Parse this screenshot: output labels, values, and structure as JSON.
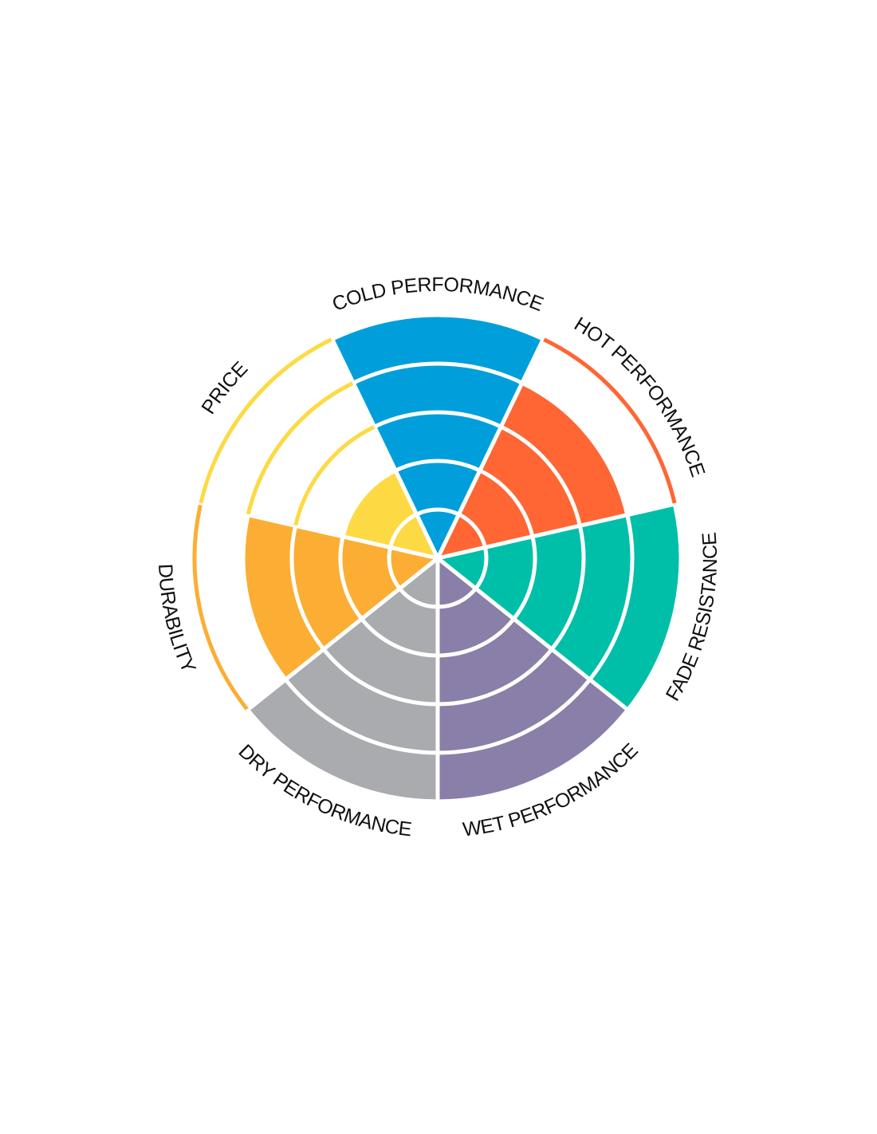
{
  "chart_data": {
    "type": "polar-area",
    "categories": [
      "COLD PERFORMANCE",
      "HOT PERFORMANCE",
      "FADE RESISTANCE",
      "WET PERFORMANCE",
      "DRY PERFORMANCE",
      "DURABILITY",
      "PRICE"
    ],
    "values": [
      5,
      4,
      5,
      5,
      5,
      4,
      2
    ],
    "colors": [
      "#009fdb",
      "#ff6633",
      "#00bfa8",
      "#8a7fa8",
      "#a9abae",
      "#fbae33",
      "#fdda44"
    ],
    "rlim": [
      0,
      5
    ],
    "rticks": [
      1,
      2,
      3,
      4,
      5
    ],
    "grid": true
  }
}
